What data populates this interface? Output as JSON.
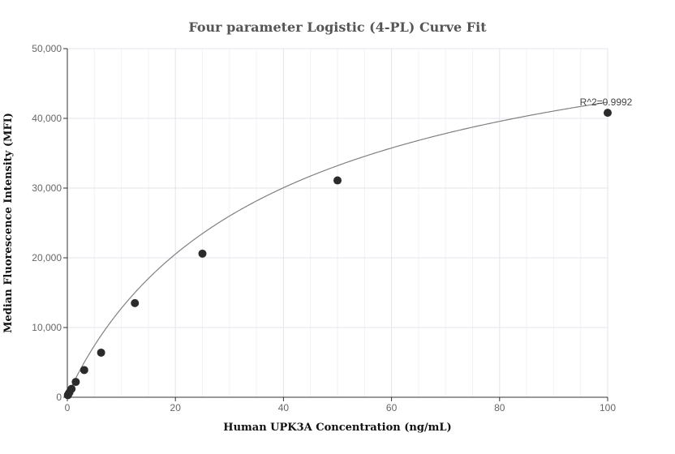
{
  "chart_data": {
    "type": "scatter",
    "title": "Four parameter Logistic (4-PL) Curve Fit",
    "xlabel": "Human UPK3A Concentration (ng/mL)",
    "ylabel": "Median Fluorescence Intensity (MFI)",
    "xlim": [
      0,
      100
    ],
    "ylim": [
      0,
      50000
    ],
    "xticks": [
      0,
      20,
      40,
      60,
      80,
      100
    ],
    "yticks": [
      0,
      10000,
      20000,
      30000,
      40000,
      50000
    ],
    "ytick_labels": [
      "0",
      "10,000",
      "20,000",
      "30,000",
      "40,000",
      "50,000"
    ],
    "grid": true,
    "points": {
      "x": [
        0.098,
        0.195,
        0.39,
        0.78,
        1.56,
        3.125,
        6.25,
        12.5,
        25,
        50,
        100
      ],
      "y": [
        300,
        450,
        700,
        1200,
        2200,
        3900,
        6400,
        13500,
        20600,
        31100,
        40800
      ]
    },
    "fit_curve": {
      "model": "4PL",
      "a": 100,
      "b": 0.95,
      "c": 40,
      "d": 60000
    },
    "annotation": {
      "text": "R^2=0.9992",
      "x": 100,
      "y": 40800
    },
    "colors": {
      "points": "#2b2b2b",
      "curve": "#808080",
      "grid": "#e4e4ec"
    }
  }
}
